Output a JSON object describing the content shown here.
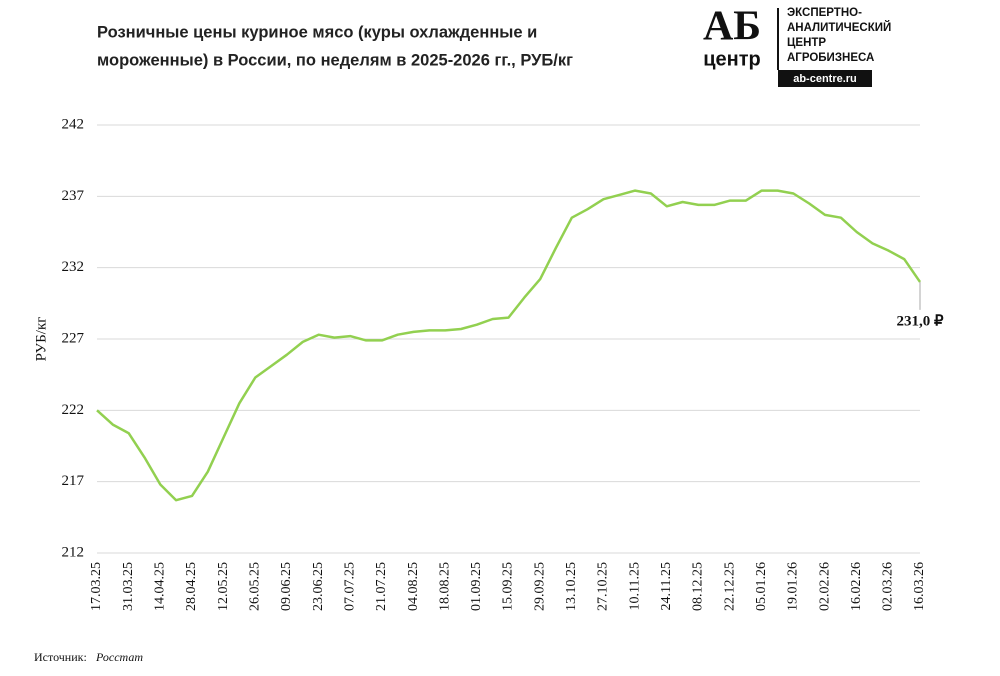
{
  "chart_data": {
    "type": "line",
    "title": [
      "Розничные цены куриное мясо (куры охлажденные и",
      "мороженные) в России, по неделям в 2025-2026 гг., РУБ/кг"
    ],
    "y_label": "РУБ/кг",
    "categories": [
      "17.03.25",
      null,
      "31.03.25",
      null,
      "14.04.25",
      null,
      "28.04.25",
      null,
      "12.05.25",
      null,
      "26.05.25",
      null,
      "09.06.25",
      null,
      "23.06.25",
      null,
      "07.07.25",
      null,
      "21.07.25",
      null,
      "04.08.25",
      null,
      "18.08.25",
      null,
      "01.09.25",
      null,
      "15.09.25",
      null,
      "29.09.25",
      null,
      "13.10.25",
      null,
      "27.10.25",
      null,
      "10.11.25",
      null,
      "24.11.25",
      null,
      "08.12.25",
      null,
      "22.12.25",
      null,
      "05.01.26",
      null,
      "19.01.26",
      null,
      "02.02.26",
      null,
      "16.02.26",
      null,
      "02.03.26",
      null,
      "16.03.26"
    ],
    "series": [
      {
        "name": null,
        "color": "#92d050",
        "values": [
          222.0,
          221.0,
          220.4,
          218.7,
          216.8,
          215.7,
          216.0,
          217.7,
          220.1,
          222.5,
          224.3,
          225.1,
          225.9,
          226.8,
          227.3,
          227.1,
          227.2,
          226.9,
          226.9,
          227.3,
          227.5,
          227.6,
          227.6,
          227.7,
          228.0,
          228.4,
          228.5,
          229.9,
          231.2,
          233.4,
          235.5,
          236.1,
          236.8,
          237.1,
          237.4,
          237.2,
          236.3,
          236.6,
          236.4,
          236.4,
          236.7,
          236.7,
          237.4,
          237.4,
          237.2,
          236.5,
          235.7,
          235.5,
          234.5,
          233.7,
          233.2,
          232.6,
          231.0
        ],
        "value_labels": [
          null,
          null,
          null,
          null,
          null,
          null,
          null,
          null,
          null,
          null,
          null,
          null,
          null,
          null,
          null,
          null,
          null,
          null,
          null,
          null,
          null,
          null,
          null,
          null,
          null,
          null,
          null,
          null,
          null,
          null,
          null,
          null,
          null,
          null,
          null,
          null,
          null,
          null,
          null,
          null,
          null,
          null,
          null,
          null,
          null,
          null,
          null,
          null,
          null,
          null,
          null,
          null,
          "231,0 ₽"
        ]
      }
    ],
    "ylim": [
      212,
      242
    ],
    "yticks": [
      212,
      217,
      222,
      227,
      232,
      237,
      242
    ],
    "grid": true,
    "source_label": "Источник:",
    "source": "Росстат"
  },
  "logo": {
    "mark_top": "АБ",
    "mark_bottom": "центр",
    "lines": [
      "ЭКСПЕРТНО-",
      "АНАЛИТИЧЕСКИЙ",
      "ЦЕНТР",
      "АГРОБИЗНЕСА"
    ],
    "site": "ab-centre.ru"
  }
}
